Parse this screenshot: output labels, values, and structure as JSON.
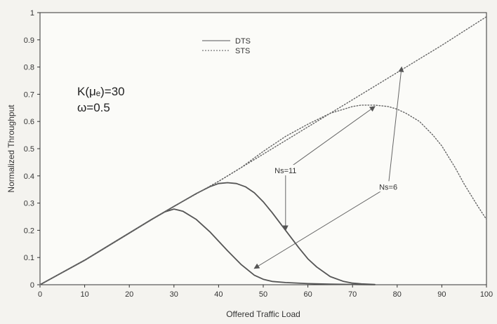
{
  "chart_data": {
    "type": "line",
    "xlabel": "Offered Traffic Load",
    "ylabel": "Normalized Throughput",
    "xlim": [
      0,
      100
    ],
    "ylim": [
      0,
      1
    ],
    "x_ticks": [
      "0",
      "10",
      "20",
      "30",
      "40",
      "50",
      "60",
      "70",
      "80",
      "90",
      "100"
    ],
    "y_ticks": [
      "0",
      "0.1",
      "0.2",
      "0.3",
      "0.4",
      "0.5",
      "0.6",
      "0.7",
      "0.8",
      "0.9",
      "1"
    ],
    "grid": false,
    "legend": {
      "position": "top-center",
      "entries": [
        {
          "label": "DTS",
          "style": "solid"
        },
        {
          "label": "STS",
          "style": "dotted"
        }
      ]
    },
    "parameters": [
      "K(μₑ)=30",
      "ω=0.5"
    ],
    "series": [
      {
        "name": "DTS",
        "group": "Ns=6",
        "style": "solid",
        "x": [
          0,
          5,
          10,
          15,
          20,
          25,
          28,
          30,
          32,
          35,
          38,
          40,
          42,
          45,
          48,
          50,
          52,
          55,
          60,
          65,
          70,
          75
        ],
        "y": [
          0,
          0.045,
          0.09,
          0.14,
          0.19,
          0.24,
          0.268,
          0.278,
          0.27,
          0.24,
          0.195,
          0.16,
          0.125,
          0.075,
          0.035,
          0.02,
          0.012,
          0.008,
          0.004,
          0.002,
          0.001,
          0
        ]
      },
      {
        "name": "DTS",
        "group": "Ns=11",
        "style": "solid",
        "x": [
          0,
          5,
          10,
          15,
          20,
          25,
          30,
          35,
          38,
          40,
          42,
          44,
          46,
          48,
          50,
          52,
          55,
          58,
          60,
          62,
          65,
          68,
          70,
          72,
          75
        ],
        "y": [
          0,
          0.045,
          0.09,
          0.14,
          0.19,
          0.24,
          0.288,
          0.335,
          0.36,
          0.372,
          0.375,
          0.372,
          0.36,
          0.338,
          0.305,
          0.265,
          0.2,
          0.135,
          0.095,
          0.065,
          0.03,
          0.012,
          0.006,
          0.003,
          0.001
        ]
      },
      {
        "name": "STS",
        "group": "Ns=11",
        "style": "dotted",
        "x": [
          0,
          10,
          20,
          30,
          40,
          45,
          50,
          55,
          60,
          65,
          70,
          72,
          75,
          78,
          80,
          82,
          85,
          88,
          90,
          93,
          95,
          98,
          100
        ],
        "y": [
          0,
          0.09,
          0.19,
          0.288,
          0.38,
          0.43,
          0.49,
          0.545,
          0.59,
          0.63,
          0.655,
          0.66,
          0.66,
          0.655,
          0.645,
          0.63,
          0.6,
          0.55,
          0.51,
          0.43,
          0.37,
          0.29,
          0.24
        ]
      },
      {
        "name": "STS",
        "group": "Ns=6",
        "style": "dotted",
        "x": [
          0,
          10,
          20,
          30,
          40,
          50,
          60,
          70,
          80,
          90,
          100
        ],
        "y": [
          0,
          0.09,
          0.19,
          0.288,
          0.38,
          0.48,
          0.58,
          0.68,
          0.78,
          0.88,
          0.985
        ]
      }
    ],
    "annotations": [
      {
        "label": "Ns=11",
        "text_at": [
          55,
          0.42
        ],
        "arrows_to": [
          [
            55,
            0.2
          ],
          [
            75,
            0.655
          ]
        ]
      },
      {
        "label": "Ns=6",
        "text_at": [
          78,
          0.36
        ],
        "arrows_to": [
          [
            48,
            0.06
          ],
          [
            81,
            0.8
          ]
        ]
      }
    ]
  }
}
